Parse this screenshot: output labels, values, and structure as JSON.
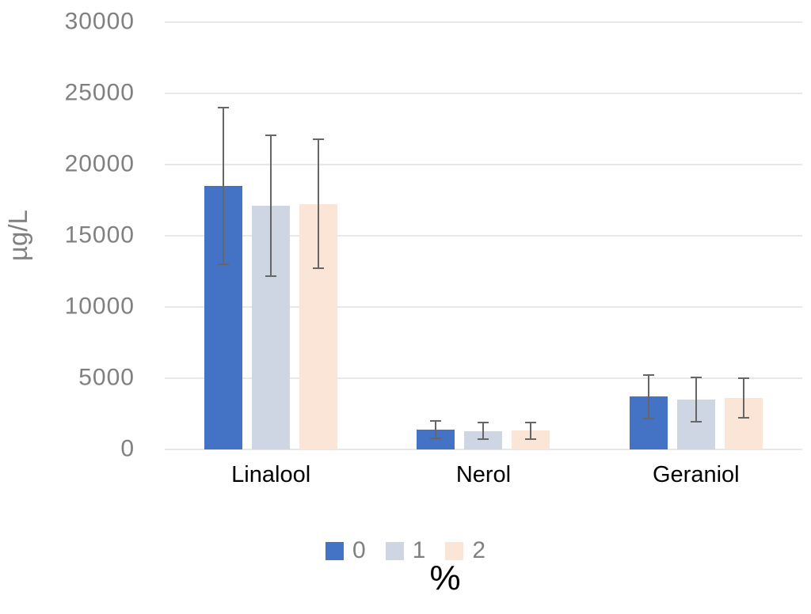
{
  "chart_data": {
    "type": "bar",
    "title": "",
    "ylabel": "µg/L",
    "xlabel": "%",
    "categories": [
      "Linalool",
      "Nerol",
      "Geraniol"
    ],
    "series": [
      {
        "name": "0",
        "color": "#4472C4",
        "values": [
          18500,
          1400,
          3700
        ],
        "errors": [
          5500,
          600,
          1550
        ]
      },
      {
        "name": "1",
        "color": "#CFD6E3",
        "values": [
          17100,
          1300,
          3500
        ],
        "errors": [
          4950,
          600,
          1550
        ]
      },
      {
        "name": "2",
        "color": "#FBE5D6",
        "values": [
          17250,
          1330,
          3600
        ],
        "errors": [
          4550,
          580,
          1400
        ]
      }
    ],
    "ylim": [
      0,
      30000
    ],
    "yticks": [
      0,
      5000,
      10000,
      15000,
      20000,
      25000,
      30000
    ],
    "grid": true,
    "legend_position": "bottom",
    "error_bars": true,
    "colors": {
      "gridline": "#E8E8E8",
      "axis_text": "#808080",
      "category_text": "#000000",
      "error_bar": "#666666",
      "legend_text": "#808080",
      "xlabel_text": "#000000"
    }
  }
}
